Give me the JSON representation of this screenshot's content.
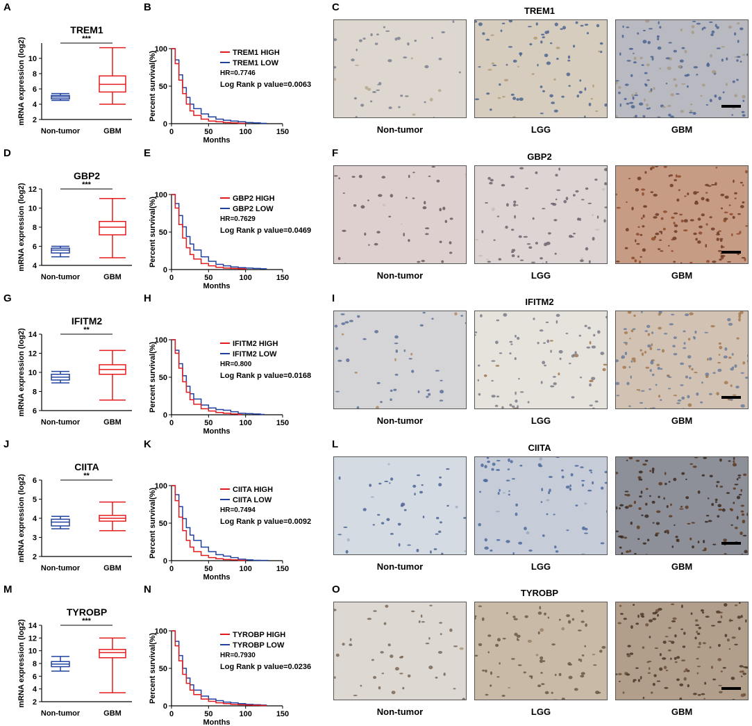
{
  "colors": {
    "high": "#e31a1c",
    "low": "#2040a0",
    "tumor_box": "#e31a1c",
    "normal_box": "#2040a0"
  },
  "ihc_labels": [
    "Non-tumor",
    "LGG",
    "GBM"
  ],
  "chart_data": [
    {
      "type": "box",
      "panel": "A",
      "title": "TREM1",
      "ylabel": "mRNA expression (log2)",
      "categories": [
        "Non-tumor",
        "GBM"
      ],
      "ylim": [
        2,
        12
      ],
      "yticks": [
        2,
        4,
        6,
        8,
        10
      ],
      "significance": "***",
      "boxes": [
        {
          "name": "Non-tumor",
          "min": 4.5,
          "q1": 4.7,
          "median": 4.95,
          "q3": 5.15,
          "max": 5.4
        },
        {
          "name": "GBM",
          "min": 4.0,
          "q1": 5.6,
          "median": 6.6,
          "q3": 7.7,
          "max": 11.4
        }
      ]
    },
    {
      "type": "line",
      "panel": "B",
      "ylabel": "Percent survival(%)",
      "xlabel": "Months",
      "xlim": [
        0,
        150
      ],
      "ylim": [
        0,
        100
      ],
      "xticks": [
        0,
        50,
        100,
        150
      ],
      "yticks": [
        0,
        50,
        100
      ],
      "series": [
        {
          "name": "TREM1 HIGH",
          "color": "#e31a1c",
          "x": [
            0,
            5,
            10,
            15,
            20,
            25,
            30,
            40,
            50,
            60,
            70,
            80,
            90,
            100
          ],
          "y": [
            100,
            80,
            58,
            40,
            26,
            17,
            11,
            6,
            3.5,
            2.5,
            1.5,
            1,
            0.5,
            0
          ]
        },
        {
          "name": "TREM1 LOW",
          "color": "#2040a0",
          "x": [
            0,
            5,
            10,
            15,
            20,
            25,
            30,
            40,
            50,
            60,
            70,
            80,
            90,
            100,
            110,
            120,
            128
          ],
          "y": [
            100,
            85,
            65,
            48,
            35,
            26,
            20,
            13,
            9,
            6,
            4.5,
            3.5,
            2.5,
            1.5,
            1,
            0.5,
            0
          ]
        }
      ],
      "annotations": [
        "HR=0.7746",
        "Log Rank p value=0.0063"
      ]
    },
    {
      "type": "box",
      "panel": "D",
      "title": "GBP2",
      "ylabel": "mRNA expression (log2)",
      "categories": [
        "Non-tumor",
        "GBM"
      ],
      "ylim": [
        4,
        12
      ],
      "yticks": [
        4,
        6,
        8,
        10,
        12
      ],
      "significance": "***",
      "boxes": [
        {
          "name": "Non-tumor",
          "min": 4.9,
          "q1": 5.3,
          "median": 5.6,
          "q3": 5.8,
          "max": 6.0
        },
        {
          "name": "GBM",
          "min": 4.8,
          "q1": 7.2,
          "median": 8.0,
          "q3": 8.6,
          "max": 11.0
        }
      ]
    },
    {
      "type": "line",
      "panel": "E",
      "ylabel": "Percent survival(%)",
      "xlabel": "Months",
      "xlim": [
        0,
        150
      ],
      "ylim": [
        0,
        100
      ],
      "xticks": [
        0,
        50,
        100,
        150
      ],
      "yticks": [
        0,
        50,
        100
      ],
      "series": [
        {
          "name": "GBP2 HIGH",
          "color": "#e31a1c",
          "x": [
            0,
            5,
            10,
            15,
            20,
            25,
            30,
            40,
            50,
            60,
            70,
            80,
            90,
            100
          ],
          "y": [
            100,
            82,
            60,
            42,
            29,
            20,
            14,
            8,
            5,
            3,
            2,
            1.5,
            1,
            0
          ]
        },
        {
          "name": "GBP2 LOW",
          "color": "#2040a0",
          "x": [
            0,
            5,
            10,
            15,
            20,
            25,
            30,
            40,
            50,
            60,
            70,
            80,
            90,
            100,
            110,
            120,
            128
          ],
          "y": [
            100,
            88,
            72,
            57,
            44,
            34,
            26,
            17,
            11,
            7,
            5,
            3.5,
            2.5,
            2,
            1.5,
            1,
            0
          ]
        }
      ],
      "annotations": [
        "HR=0.7629",
        "Log Rank p value=0.0469"
      ]
    },
    {
      "type": "box",
      "panel": "G",
      "title": "IFITM2",
      "ylabel": "mRNA expression (log2)",
      "categories": [
        "Non-tumor",
        "GBM"
      ],
      "ylim": [
        6,
        14
      ],
      "yticks": [
        6,
        8,
        10,
        12,
        14
      ],
      "significance": "**",
      "boxes": [
        {
          "name": "Non-tumor",
          "min": 8.9,
          "q1": 9.2,
          "median": 9.5,
          "q3": 9.8,
          "max": 10.1
        },
        {
          "name": "GBM",
          "min": 7.1,
          "q1": 9.8,
          "median": 10.3,
          "q3": 10.8,
          "max": 12.3
        }
      ]
    },
    {
      "type": "line",
      "panel": "H",
      "ylabel": "Percent survival(%)",
      "xlabel": "Months",
      "xlim": [
        0,
        150
      ],
      "ylim": [
        0,
        100
      ],
      "xticks": [
        0,
        50,
        100,
        150
      ],
      "yticks": [
        0,
        50,
        100
      ],
      "series": [
        {
          "name": "IFITM2 HIGH",
          "color": "#e31a1c",
          "x": [
            0,
            5,
            10,
            15,
            20,
            25,
            30,
            40,
            50,
            60,
            70,
            80,
            90,
            95
          ],
          "y": [
            100,
            82,
            62,
            44,
            30,
            20,
            14,
            8,
            5,
            3,
            2,
            1,
            0.5,
            0
          ]
        },
        {
          "name": "IFITM2 LOW",
          "color": "#2040a0",
          "x": [
            0,
            5,
            10,
            15,
            20,
            25,
            30,
            40,
            50,
            60,
            70,
            80,
            90,
            100,
            110,
            120,
            125
          ],
          "y": [
            100,
            86,
            68,
            52,
            38,
            28,
            21,
            13,
            9,
            7,
            6,
            4,
            2,
            1.5,
            1,
            0.5,
            0
          ]
        }
      ],
      "annotations": [
        "HR=0.800",
        "Log Rank p value=0.0168"
      ]
    },
    {
      "type": "box",
      "panel": "J",
      "title": "CIITA",
      "ylabel": "mRNA expression (log2)",
      "categories": [
        "Non-tumor",
        "GBM"
      ],
      "ylim": [
        2,
        6
      ],
      "yticks": [
        2,
        3,
        4,
        5,
        6
      ],
      "significance": "**",
      "boxes": [
        {
          "name": "Non-tumor",
          "min": 3.45,
          "q1": 3.6,
          "median": 3.8,
          "q3": 3.95,
          "max": 4.1
        },
        {
          "name": "GBM",
          "min": 3.35,
          "q1": 3.85,
          "median": 4.0,
          "q3": 4.15,
          "max": 4.85
        }
      ]
    },
    {
      "type": "line",
      "panel": "K",
      "ylabel": "Percent survival(%)",
      "xlabel": "Months",
      "xlim": [
        0,
        150
      ],
      "ylim": [
        0,
        100
      ],
      "xticks": [
        0,
        50,
        100,
        150
      ],
      "yticks": [
        0,
        50,
        100
      ],
      "series": [
        {
          "name": "CIITA HIGH",
          "color": "#e31a1c",
          "x": [
            0,
            5,
            10,
            15,
            20,
            25,
            30,
            40,
            50,
            60,
            70,
            80,
            90,
            100
          ],
          "y": [
            100,
            80,
            58,
            40,
            27,
            18,
            12,
            7,
            4,
            2.5,
            1.5,
            1,
            0.5,
            0
          ]
        },
        {
          "name": "CIITA LOW",
          "color": "#2040a0",
          "x": [
            0,
            5,
            10,
            15,
            20,
            25,
            30,
            40,
            50,
            60,
            70,
            80,
            90,
            100,
            110,
            120,
            130
          ],
          "y": [
            100,
            88,
            72,
            56,
            44,
            34,
            27,
            18,
            12,
            8,
            6,
            4,
            2,
            1,
            0.5,
            0.3,
            0
          ]
        }
      ],
      "annotations": [
        "HR=0.7494",
        "Log Rank p value=0.0092"
      ]
    },
    {
      "type": "box",
      "panel": "M",
      "title": "TYROBP",
      "ylabel": "mRNA expression (log2)",
      "categories": [
        "Non-tumor",
        "GBM"
      ],
      "ylim": [
        2,
        14
      ],
      "yticks": [
        2,
        4,
        6,
        8,
        10,
        12,
        14
      ],
      "significance": "***",
      "boxes": [
        {
          "name": "Non-tumor",
          "min": 6.8,
          "q1": 7.5,
          "median": 7.9,
          "q3": 8.3,
          "max": 9.1
        },
        {
          "name": "GBM",
          "min": 3.4,
          "q1": 8.9,
          "median": 9.7,
          "q3": 10.2,
          "max": 12.0
        }
      ]
    },
    {
      "type": "line",
      "panel": "N",
      "ylabel": "Percent survival(%)",
      "xlabel": "Months",
      "xlim": [
        0,
        150
      ],
      "ylim": [
        0,
        100
      ],
      "xticks": [
        0,
        50,
        100,
        150
      ],
      "yticks": [
        0,
        50,
        100
      ],
      "series": [
        {
          "name": "TYROBP HIGH",
          "color": "#e31a1c",
          "x": [
            0,
            5,
            10,
            15,
            20,
            25,
            30,
            40,
            50,
            60,
            70,
            80,
            90,
            100,
            110,
            120,
            128
          ],
          "y": [
            100,
            80,
            60,
            42,
            30,
            21,
            15,
            9,
            6,
            4,
            3,
            2,
            1.5,
            1,
            0.8,
            0.5,
            0
          ]
        },
        {
          "name": "TYROBP LOW",
          "color": "#2040a0",
          "x": [
            0,
            5,
            10,
            15,
            20,
            25,
            30,
            40,
            50,
            60,
            70,
            80,
            90,
            100,
            110,
            120,
            128
          ],
          "y": [
            100,
            86,
            67,
            50,
            37,
            28,
            21,
            13,
            9,
            7,
            5,
            4,
            3,
            2,
            1.5,
            1,
            0
          ]
        }
      ],
      "annotations": [
        "HR=0.7930",
        "Log Rank p value=0.0236"
      ]
    }
  ],
  "rows": [
    {
      "letters": [
        "A",
        "B",
        "C"
      ],
      "ihc_title": "TREM1",
      "tints": [
        "#ddd7d0",
        "#d6cdbe",
        "#b9b9c2"
      ],
      "nuclei": [
        "#7c8090",
        "#4f6590",
        "#4c638f"
      ],
      "stain": [
        "#b8a890",
        "#b39a78",
        "#a79a86"
      ]
    },
    {
      "letters": [
        "D",
        "E",
        "F"
      ],
      "ihc_title": "GBP2",
      "tints": [
        "#ddd0cf",
        "#ddd5d3",
        "#c69d84"
      ],
      "nuclei": [
        "#6b5860",
        "#6e6470",
        "#6d3a28"
      ],
      "stain": [
        "#cfbab5",
        "#cabcb8",
        "#8e4a2a"
      ]
    },
    {
      "letters": [
        "G",
        "H",
        "I"
      ],
      "ihc_title": "IFITM2",
      "tints": [
        "#d5d4d6",
        "#e6e3dd",
        "#d2c2b3"
      ],
      "nuclei": [
        "#5a6f99",
        "#7b7b88",
        "#6b7c9a"
      ],
      "stain": [
        "#b08a60",
        "#a07850",
        "#a47a50"
      ]
    },
    {
      "letters": [
        "J",
        "K",
        "L"
      ],
      "ihc_title": "CIITA",
      "tints": [
        "#d4dbe3",
        "#c6cdd8",
        "#8d8f99"
      ],
      "nuclei": [
        "#4e6594",
        "#4d6a9e",
        "#3a2a20"
      ],
      "stain": [
        "#a7b2c2",
        "#9aa8c0",
        "#5a3a20"
      ]
    },
    {
      "letters": [
        "M",
        "N",
        "O"
      ],
      "ihc_title": "TYROBP",
      "tints": [
        "#ddd8d2",
        "#c9b9a7",
        "#b19e8b"
      ],
      "nuclei": [
        "#7a6858",
        "#6b5846",
        "#4b3628"
      ],
      "stain": [
        "#a89880",
        "#9a8266",
        "#6e5038"
      ]
    }
  ]
}
